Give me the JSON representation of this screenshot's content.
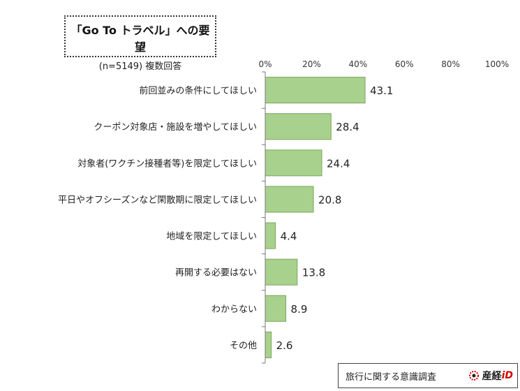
{
  "header": {
    "title": "「Go To トラベル」への要望",
    "subtitle": "(n=5149) 複数回答"
  },
  "footer": {
    "source": "旅行に関する意識調査",
    "brand": "産経",
    "brand_suffix": "iD",
    "brand_color": "#d40000"
  },
  "chart_data": {
    "type": "bar",
    "orientation": "horizontal",
    "title": "「Go To トラベル」への要望",
    "subtitle": "(n=5149) 複数回答",
    "xlabel": "",
    "ylabel": "",
    "xlim": [
      0,
      100
    ],
    "x_ticks": [
      "0%",
      "20%",
      "40%",
      "60%",
      "80%",
      "100%"
    ],
    "tick_values": [
      0,
      20,
      40,
      60,
      80,
      100
    ],
    "categories": [
      "前回並みの条件にしてほしい",
      "クーポン対象店・施設を増やしてほしい",
      "対象者(ワクチン接種者等)を限定してほしい",
      "平日やオフシーズンなど閑散期に限定してほしい",
      "地域を限定してほしい",
      "再開する必要はない",
      "わからない",
      "その他"
    ],
    "values": [
      43.1,
      28.4,
      24.4,
      20.8,
      4.4,
      13.8,
      8.9,
      2.6
    ],
    "value_labels": [
      "43.1",
      "28.4",
      "24.4",
      "20.8",
      "4.4",
      "13.8",
      "8.9",
      "2.6"
    ],
    "bar_color": "#a9d18e",
    "bar_border_color": "#7aa65a",
    "grid": false,
    "legend": "none"
  }
}
